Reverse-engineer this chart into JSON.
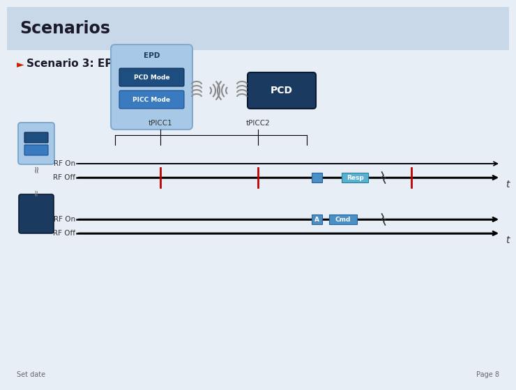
{
  "title": "Scenarios",
  "subtitle": "Scenario 3: EPD and PCD",
  "title_bg": "#c8d8e8",
  "content_bg": "#e8eef5",
  "epd_label": "EPD",
  "pcd_mode_label": "PCD Mode",
  "picc_mode_label": "PICC Mode",
  "pcd_label": "PCD",
  "tpicc1_label": "tPICC1",
  "tpicc2_label": "tPICC2",
  "rf_on_label": "RF On",
  "rf_off_label": "RF Off",
  "resp_label": "Resp",
  "cmd_label": "Cmd",
  "a_label": "A",
  "footer_left": "Set date",
  "footer_right": "Page 8",
  "epd_box_fill": "#a8c8e8",
  "epd_box_edge": "#80aad0",
  "pcd_mode_fill": "#1e4d80",
  "picc_mode_fill": "#3a7abf",
  "pcd_box_fill": "#1a3a60",
  "red_color": "#c00000",
  "signal_fill": "#4a90c4",
  "resp_fill": "#5ab0d0",
  "arrow_color": "#000000",
  "coil_color": "#909090"
}
